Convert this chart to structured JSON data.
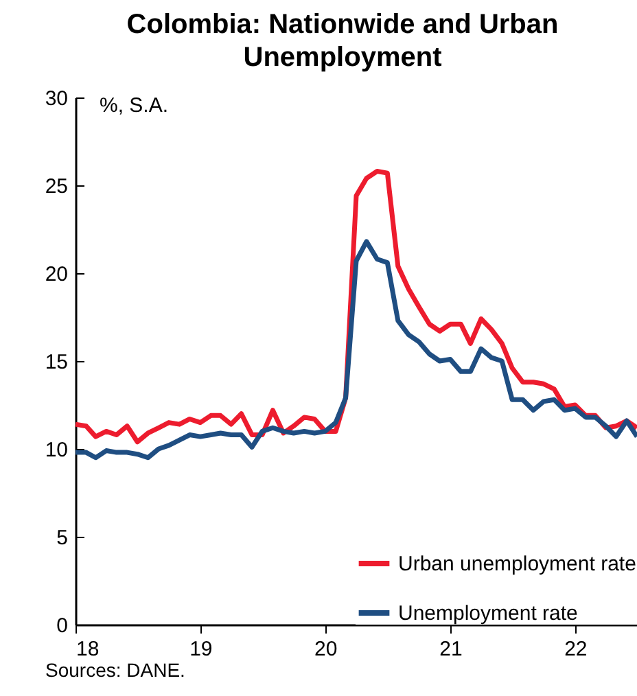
{
  "chart_data": {
    "type": "line",
    "title": "Colombia: Nationwide and Urban Unemployment",
    "ylabel": "%, S.A.",
    "annotations": [
      "Sources: DANE."
    ],
    "x": [
      "2018-01",
      "2018-02",
      "2018-03",
      "2018-04",
      "2018-05",
      "2018-06",
      "2018-07",
      "2018-08",
      "2018-09",
      "2018-10",
      "2018-11",
      "2018-12",
      "2019-01",
      "2019-02",
      "2019-03",
      "2019-04",
      "2019-05",
      "2019-06",
      "2019-07",
      "2019-08",
      "2019-09",
      "2019-10",
      "2019-11",
      "2019-12",
      "2020-01",
      "2020-02",
      "2020-03",
      "2020-04",
      "2020-05",
      "2020-06",
      "2020-07",
      "2020-08",
      "2020-09",
      "2020-10",
      "2020-11",
      "2020-12",
      "2021-01",
      "2021-02",
      "2021-03",
      "2021-04",
      "2021-05",
      "2021-06",
      "2021-07",
      "2021-08",
      "2021-09",
      "2021-10",
      "2021-11",
      "2021-12",
      "2022-01",
      "2022-02",
      "2022-03",
      "2022-04",
      "2022-05",
      "2022-06",
      "2022-07"
    ],
    "series": [
      {
        "name": "Urban unemployment rate",
        "color": "#ed1c2e",
        "values": [
          11.4,
          11.3,
          10.7,
          11.0,
          10.8,
          11.3,
          10.4,
          10.9,
          11.2,
          11.5,
          11.4,
          11.7,
          11.5,
          11.9,
          11.9,
          11.4,
          12.0,
          10.8,
          10.8,
          12.2,
          10.9,
          11.3,
          11.8,
          11.7,
          11.0,
          11.0,
          12.9,
          24.4,
          25.4,
          25.8,
          25.7,
          20.4,
          19.1,
          18.1,
          17.1,
          16.7,
          17.1,
          17.1,
          16.0,
          17.4,
          16.8,
          16.0,
          14.6,
          13.8,
          13.8,
          13.7,
          13.4,
          12.4,
          12.5,
          11.9,
          11.9,
          11.2,
          11.3,
          11.6,
          11.2
        ]
      },
      {
        "name": "Unemployment rate",
        "color": "#1f4e82",
        "values": [
          9.8,
          9.8,
          9.5,
          9.9,
          9.8,
          9.8,
          9.7,
          9.5,
          10.0,
          10.2,
          10.5,
          10.8,
          10.7,
          10.8,
          10.9,
          10.8,
          10.8,
          10.1,
          11.0,
          11.2,
          11.0,
          10.9,
          11.0,
          10.9,
          11.0,
          11.5,
          12.9,
          20.7,
          21.8,
          20.8,
          20.6,
          17.3,
          16.5,
          16.1,
          15.4,
          15.0,
          15.1,
          14.4,
          14.4,
          15.7,
          15.2,
          15.0,
          12.8,
          12.8,
          12.2,
          12.7,
          12.8,
          12.2,
          12.3,
          11.8,
          11.8,
          11.3,
          10.7,
          11.6,
          10.7
        ]
      }
    ],
    "xlim": [
      "2018-01",
      "2022-07"
    ],
    "xticks": [
      {
        "value": "2018-01",
        "label": "18"
      },
      {
        "value": "2019-01",
        "label": "19"
      },
      {
        "value": "2020-01",
        "label": "20"
      },
      {
        "value": "2021-01",
        "label": "21"
      },
      {
        "value": "2022-01",
        "label": "22"
      }
    ],
    "ylim": [
      0,
      30
    ],
    "yticks": [
      0,
      5,
      10,
      15,
      20,
      25,
      30
    ],
    "grid": false,
    "legend": "bottom right",
    "marker": "none",
    "line_style": "solid"
  }
}
